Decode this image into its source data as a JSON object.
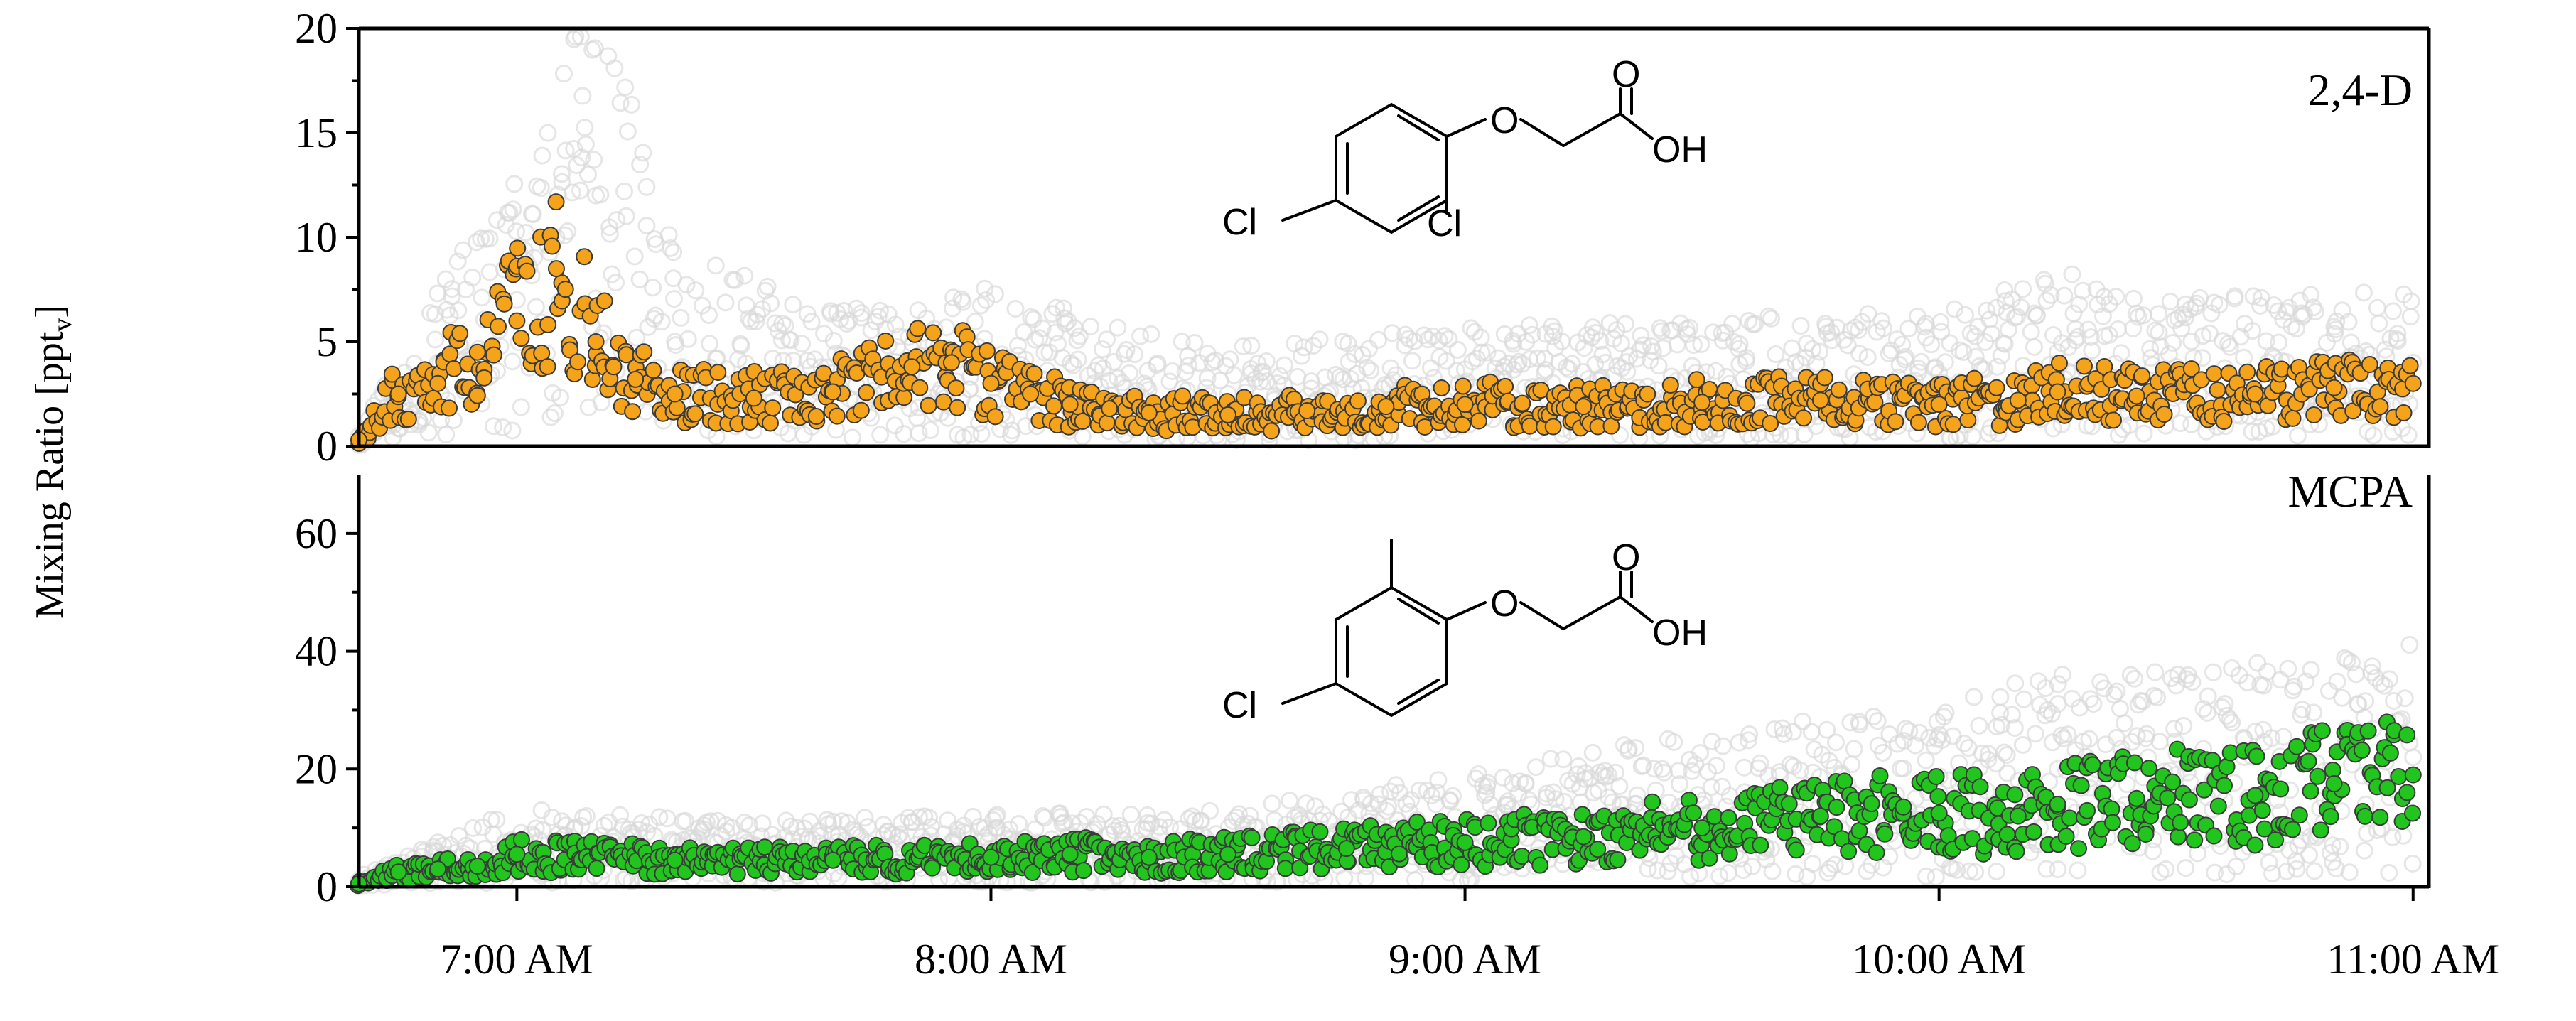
{
  "figure": {
    "y_axis_label": {
      "main": "Mixing Ratio [ppt",
      "sub": "v",
      "close": "]"
    },
    "x_ticks": [
      "7:00 AM",
      "8:00 AM",
      "9:00 AM",
      "10:00 AM",
      "11:00 AM"
    ]
  },
  "chemistry": {
    "two4d": {
      "cl_left": "Cl",
      "cl_right": "Cl",
      "o_ether": "O",
      "o_carbonyl": "O",
      "oh": "OH"
    },
    "mcpa": {
      "cl_left": "Cl",
      "o_ether": "O",
      "o_carbonyl": "O",
      "oh": "OH"
    }
  },
  "chart_data": [
    {
      "type": "scatter",
      "panel_label": "2,4-D",
      "x_unit": "time of day",
      "xlim": [
        "6:40 AM",
        "11:02 AM"
      ],
      "ylim": [
        0,
        20
      ],
      "y_ticks": [
        0,
        5,
        10,
        15,
        20
      ],
      "grid": false,
      "colors": {
        "measured": "#f5a31a",
        "background": "#d9d9d9"
      },
      "series": [
        {
          "role": "measured",
          "x": [
            "6:40 AM",
            "6:45 AM",
            "6:50 AM",
            "6:55 AM",
            "7:00 AM",
            "7:05 AM",
            "7:10 AM",
            "7:15 AM",
            "7:20 AM",
            "7:30 AM",
            "7:40 AM",
            "7:50 AM",
            "7:55 AM",
            "8:00 AM",
            "8:05 AM",
            "8:10 AM",
            "8:15 AM",
            "8:20 AM",
            "8:30 AM",
            "8:40 AM",
            "8:50 AM",
            "9:00 AM",
            "9:15 AM",
            "9:30 AM",
            "9:45 AM",
            "10:00 AM",
            "10:10 AM",
            "10:15 AM",
            "10:25 AM",
            "10:40 AM",
            "10:50 AM",
            "11:00 AM"
          ],
          "values": [
            0.3,
            2.5,
            3.0,
            4.5,
            6.0,
            8.5,
            5.0,
            3.2,
            2.5,
            2.3,
            2.6,
            3.8,
            4.0,
            3.0,
            2.5,
            2.0,
            1.8,
            1.6,
            1.5,
            1.7,
            1.9,
            2.0,
            1.9,
            2.1,
            2.2,
            2.0,
            2.2,
            2.6,
            2.4,
            2.5,
            2.8,
            3.0
          ]
        },
        {
          "role": "background",
          "x": [
            "6:40 AM",
            "6:50 AM",
            "7:00 AM",
            "7:05 AM",
            "7:10 AM",
            "7:20 AM",
            "7:40 AM",
            "8:00 AM",
            "8:30 AM",
            "9:00 AM",
            "9:30 AM",
            "10:00 AM",
            "10:15 AM",
            "10:30 AM",
            "11:00 AM"
          ],
          "values": [
            0.5,
            4.0,
            7.0,
            10.0,
            12.0,
            5.0,
            3.5,
            4.0,
            2.5,
            3.0,
            3.2,
            3.5,
            4.5,
            3.8,
            4.0
          ]
        }
      ]
    },
    {
      "type": "scatter",
      "panel_label": "MCPA",
      "x_unit": "time of day",
      "xlim": [
        "6:40 AM",
        "11:02 AM"
      ],
      "ylim": [
        0,
        70
      ],
      "y_ticks": [
        0,
        20,
        40,
        60
      ],
      "grid": false,
      "colors": {
        "measured": "#22c51e",
        "background": "#d9d9d9"
      },
      "series": [
        {
          "role": "measured",
          "x": [
            "6:40 AM",
            "6:45 AM",
            "6:50 AM",
            "6:55 AM",
            "7:00 AM",
            "7:20 AM",
            "7:40 AM",
            "8:00 AM",
            "8:10 AM",
            "8:20 AM",
            "8:30 AM",
            "8:45 AM",
            "9:00 AM",
            "9:15 AM",
            "9:30 AM",
            "9:45 AM",
            "10:00 AM",
            "10:10 AM",
            "10:15 AM",
            "10:25 AM",
            "10:40 AM",
            "10:50 AM",
            "11:00 AM"
          ],
          "values": [
            0.5,
            2.5,
            3.0,
            3.5,
            5.5,
            4.5,
            4.5,
            5.0,
            5.5,
            5.0,
            5.5,
            6.5,
            7.5,
            8.5,
            10.0,
            12.0,
            12.5,
            12.0,
            14.0,
            15.0,
            15.5,
            17.5,
            19.0
          ]
        },
        {
          "role": "background",
          "x": [
            "6:40 AM",
            "7:00 AM",
            "7:30 AM",
            "8:00 AM",
            "8:30 AM",
            "9:00 AM",
            "9:30 AM",
            "10:00 AM",
            "10:15 AM",
            "10:30 AM",
            "11:00 AM"
          ],
          "values": [
            1.0,
            7.0,
            6.0,
            6.5,
            7.0,
            10.0,
            14.0,
            16.0,
            20.0,
            19.0,
            22.0
          ]
        }
      ]
    }
  ]
}
